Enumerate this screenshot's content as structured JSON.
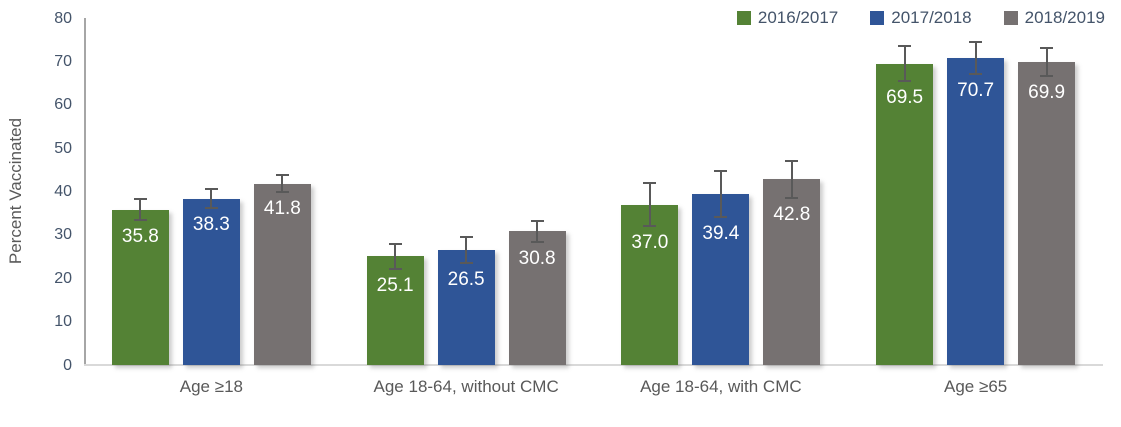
{
  "chart_data": {
    "type": "bar",
    "title": "",
    "ylabel": "Percent Vaccinated",
    "xlabel": "",
    "ylim": [
      0,
      80
    ],
    "yticks": [
      0,
      10,
      20,
      30,
      40,
      50,
      60,
      70,
      80
    ],
    "grid": false,
    "legend_position": "top-right",
    "error_bars": true,
    "value_label_format": "one_decimal",
    "value_label_color": "#ffffff",
    "categories": [
      "Age ≥18",
      "Age 18-64, without CMC",
      "Age 18-64, with CMC",
      "Age ≥65"
    ],
    "series": [
      {
        "name": "2016/2017",
        "color": "#548235",
        "values": [
          35.8,
          25.1,
          37.0,
          69.5
        ],
        "errors_est": [
          2.4,
          2.9,
          5.0,
          4.0
        ]
      },
      {
        "name": "2017/2018",
        "color": "#2F5597",
        "values": [
          38.3,
          26.5,
          39.4,
          70.7
        ],
        "errors_est": [
          2.2,
          3.0,
          5.3,
          3.7
        ]
      },
      {
        "name": "2018/2019",
        "color": "#767171",
        "values": [
          41.8,
          30.8,
          42.8,
          69.9
        ],
        "errors_est": [
          2.0,
          2.5,
          4.2,
          3.2
        ]
      }
    ]
  },
  "colors": {
    "background": "#ffffff",
    "axis_line_y": "#A6A6A6",
    "axis_line_x": "#D9D9D9",
    "tick_text": "#44546A",
    "category_text": "#595959",
    "legend_text": "#44546A",
    "error_bar": "#595959"
  }
}
